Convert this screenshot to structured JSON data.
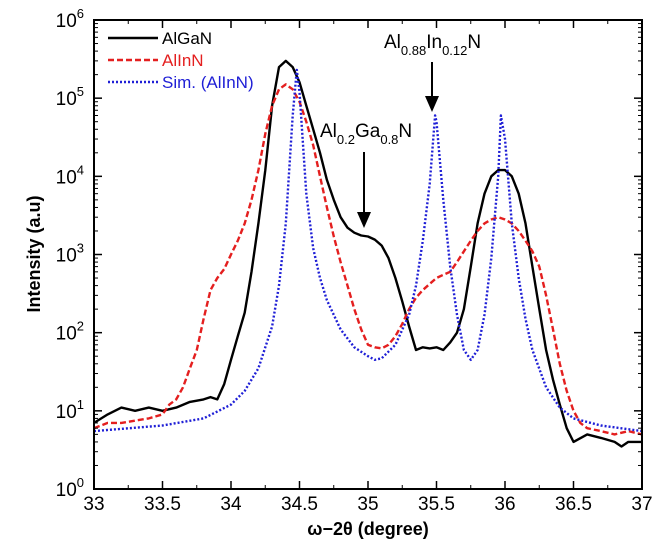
{
  "chart_data": {
    "type": "line",
    "xlabel": "ω−2θ (degree)",
    "ylabel": "Intensity (a.u)",
    "xlim": [
      33,
      37
    ],
    "ylim": [
      1,
      1000000
    ],
    "yscale": "log",
    "x_ticks": [
      33,
      33.5,
      34,
      34.5,
      35,
      35.5,
      36,
      36.5,
      37
    ],
    "x_tick_labels": [
      "33",
      "33.5",
      "34",
      "34.5",
      "35",
      "35.5",
      "36",
      "36.5",
      "37"
    ],
    "y_ticks": [
      1,
      10,
      100,
      1000,
      10000,
      100000,
      1000000
    ],
    "y_tick_labels": [
      {
        "base": "10",
        "exp": "0"
      },
      {
        "base": "10",
        "exp": "1"
      },
      {
        "base": "10",
        "exp": "2"
      },
      {
        "base": "10",
        "exp": "3"
      },
      {
        "base": "10",
        "exp": "4"
      },
      {
        "base": "10",
        "exp": "5"
      },
      {
        "base": "10",
        "exp": "6"
      }
    ],
    "grid": false,
    "legend_position": "top-left",
    "series": [
      {
        "name": "AlGaN",
        "color": "#000000",
        "style": "solid",
        "points": [
          [
            33.0,
            7
          ],
          [
            33.1,
            9
          ],
          [
            33.2,
            11
          ],
          [
            33.3,
            10
          ],
          [
            33.4,
            11
          ],
          [
            33.5,
            10
          ],
          [
            33.6,
            11
          ],
          [
            33.7,
            13
          ],
          [
            33.8,
            14
          ],
          [
            33.85,
            15
          ],
          [
            33.9,
            14
          ],
          [
            33.95,
            22
          ],
          [
            34.0,
            45
          ],
          [
            34.05,
            90
          ],
          [
            34.1,
            180
          ],
          [
            34.15,
            600
          ],
          [
            34.2,
            2500
          ],
          [
            34.25,
            12000
          ],
          [
            34.3,
            80000
          ],
          [
            34.35,
            250000
          ],
          [
            34.4,
            300000
          ],
          [
            34.45,
            250000
          ],
          [
            34.5,
            160000
          ],
          [
            34.55,
            80000
          ],
          [
            34.6,
            40000
          ],
          [
            34.65,
            20000
          ],
          [
            34.7,
            9000
          ],
          [
            34.75,
            5000
          ],
          [
            34.8,
            3000
          ],
          [
            34.85,
            2200
          ],
          [
            34.9,
            1900
          ],
          [
            34.95,
            1750
          ],
          [
            35.0,
            1700
          ],
          [
            35.05,
            1550
          ],
          [
            35.1,
            1300
          ],
          [
            35.15,
            900
          ],
          [
            35.2,
            500
          ],
          [
            35.25,
            250
          ],
          [
            35.3,
            120
          ],
          [
            35.35,
            60
          ],
          [
            35.4,
            65
          ],
          [
            35.45,
            63
          ],
          [
            35.5,
            65
          ],
          [
            35.55,
            60
          ],
          [
            35.6,
            75
          ],
          [
            35.65,
            100
          ],
          [
            35.7,
            200
          ],
          [
            35.75,
            700
          ],
          [
            35.8,
            2500
          ],
          [
            35.85,
            6000
          ],
          [
            35.9,
            10000
          ],
          [
            35.95,
            12000
          ],
          [
            36.0,
            12000
          ],
          [
            36.05,
            10000
          ],
          [
            36.1,
            6000
          ],
          [
            36.15,
            2500
          ],
          [
            36.2,
            700
          ],
          [
            36.25,
            200
          ],
          [
            36.3,
            60
          ],
          [
            36.35,
            25
          ],
          [
            36.4,
            12
          ],
          [
            36.45,
            6
          ],
          [
            36.5,
            4
          ],
          [
            36.6,
            5
          ],
          [
            36.7,
            4.5
          ],
          [
            36.8,
            4
          ],
          [
            36.85,
            3.5
          ],
          [
            36.9,
            4
          ],
          [
            37.0,
            4
          ]
        ]
      },
      {
        "name": "AlInN",
        "color": "#e41f1f",
        "style": "dashed",
        "points": [
          [
            33.0,
            6
          ],
          [
            33.1,
            7
          ],
          [
            33.2,
            7
          ],
          [
            33.3,
            7.5
          ],
          [
            33.4,
            8
          ],
          [
            33.5,
            9
          ],
          [
            33.55,
            12
          ],
          [
            33.6,
            14
          ],
          [
            33.65,
            20
          ],
          [
            33.7,
            35
          ],
          [
            33.75,
            60
          ],
          [
            33.8,
            150
          ],
          [
            33.85,
            350
          ],
          [
            33.9,
            500
          ],
          [
            33.95,
            650
          ],
          [
            34.0,
            1000
          ],
          [
            34.05,
            1500
          ],
          [
            34.1,
            2500
          ],
          [
            34.15,
            5000
          ],
          [
            34.2,
            12000
          ],
          [
            34.25,
            35000
          ],
          [
            34.3,
            80000
          ],
          [
            34.35,
            130000
          ],
          [
            34.4,
            150000
          ],
          [
            34.45,
            130000
          ],
          [
            34.5,
            90000
          ],
          [
            34.55,
            50000
          ],
          [
            34.6,
            25000
          ],
          [
            34.65,
            10000
          ],
          [
            34.7,
            4000
          ],
          [
            34.75,
            1700
          ],
          [
            34.8,
            800
          ],
          [
            34.85,
            400
          ],
          [
            34.9,
            200
          ],
          [
            34.95,
            110
          ],
          [
            35.0,
            70
          ],
          [
            35.05,
            65
          ],
          [
            35.1,
            63
          ],
          [
            35.15,
            70
          ],
          [
            35.2,
            90
          ],
          [
            35.25,
            130
          ],
          [
            35.3,
            200
          ],
          [
            35.35,
            280
          ],
          [
            35.4,
            350
          ],
          [
            35.45,
            420
          ],
          [
            35.5,
            500
          ],
          [
            35.55,
            550
          ],
          [
            35.6,
            600
          ],
          [
            35.65,
            800
          ],
          [
            35.7,
            1100
          ],
          [
            35.75,
            1500
          ],
          [
            35.8,
            2000
          ],
          [
            35.85,
            2500
          ],
          [
            35.9,
            2800
          ],
          [
            35.95,
            3000
          ],
          [
            36.0,
            2800
          ],
          [
            36.05,
            2500
          ],
          [
            36.1,
            2000
          ],
          [
            36.15,
            1500
          ],
          [
            36.2,
            1100
          ],
          [
            36.25,
            700
          ],
          [
            36.3,
            300
          ],
          [
            36.35,
            110
          ],
          [
            36.4,
            40
          ],
          [
            36.45,
            18
          ],
          [
            36.5,
            10
          ],
          [
            36.55,
            7
          ],
          [
            36.6,
            6
          ],
          [
            36.7,
            5.5
          ],
          [
            36.8,
            5
          ],
          [
            36.9,
            5.5
          ],
          [
            37.0,
            5
          ]
        ]
      },
      {
        "name": "Sim. (AlInN)",
        "color": "#1f1fd6",
        "style": "dotted",
        "points": [
          [
            33.0,
            5.5
          ],
          [
            33.5,
            6.5
          ],
          [
            33.8,
            8
          ],
          [
            34.0,
            12
          ],
          [
            34.1,
            18
          ],
          [
            34.2,
            35
          ],
          [
            34.3,
            120
          ],
          [
            34.35,
            400
          ],
          [
            34.4,
            2500
          ],
          [
            34.45,
            60000
          ],
          [
            34.48,
            230000
          ],
          [
            34.5,
            120000
          ],
          [
            34.55,
            6000
          ],
          [
            34.6,
            1200
          ],
          [
            34.65,
            500
          ],
          [
            34.7,
            260
          ],
          [
            34.8,
            110
          ],
          [
            34.9,
            65
          ],
          [
            35.0,
            50
          ],
          [
            35.05,
            45
          ],
          [
            35.1,
            47
          ],
          [
            35.2,
            70
          ],
          [
            35.3,
            170
          ],
          [
            35.35,
            400
          ],
          [
            35.4,
            1500
          ],
          [
            35.45,
            8000
          ],
          [
            35.49,
            60000
          ],
          [
            35.5,
            50000
          ],
          [
            35.55,
            5000
          ],
          [
            35.6,
            700
          ],
          [
            35.65,
            170
          ],
          [
            35.7,
            60
          ],
          [
            35.75,
            45
          ],
          [
            35.8,
            60
          ],
          [
            35.85,
            170
          ],
          [
            35.9,
            900
          ],
          [
            35.95,
            10000
          ],
          [
            35.97,
            60000
          ],
          [
            36.0,
            30000
          ],
          [
            36.05,
            2500
          ],
          [
            36.1,
            500
          ],
          [
            36.15,
            150
          ],
          [
            36.2,
            60
          ],
          [
            36.3,
            20
          ],
          [
            36.4,
            11
          ],
          [
            36.5,
            8
          ],
          [
            36.7,
            6.5
          ],
          [
            37.0,
            5.5
          ]
        ]
      }
    ],
    "annotations": [
      {
        "base": "Al",
        "sub1": "0.2",
        "mid": "Ga",
        "sub2": "0.8",
        "end": "N",
        "arrow_to": [
          34.97,
          1100
        ]
      },
      {
        "base": "Al",
        "sub1": "0.88",
        "mid": "In",
        "sub2": "0.12",
        "end": "N",
        "arrow_to": [
          35.48,
          70000
        ]
      }
    ]
  }
}
